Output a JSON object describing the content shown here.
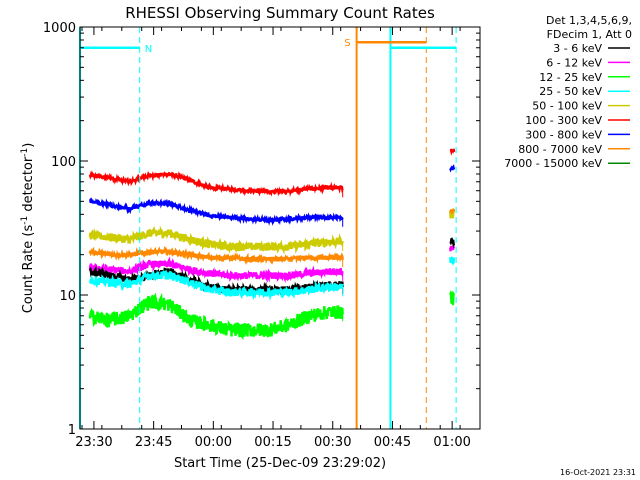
{
  "chart_data": {
    "type": "line",
    "title": "RHESSI Observing Summary Count Rates",
    "xlabel": "Start Time (25-Dec-09 23:29:02)",
    "ylabel": "Count Rate (s⁻¹ detector⁻¹)",
    "ylabel_parts": {
      "base": "Count Rate (s",
      "sup1": "-1",
      "mid": " detector",
      "sup2": "-1",
      "end": ")"
    },
    "yscale": "log",
    "ylim": [
      1,
      1000
    ],
    "xlim": [
      -2.5,
      98
    ],
    "x_units": "minutes after 23:29:02 (axis labels show HH:MM)",
    "x_ticks": [
      {
        "x": 1,
        "label": "23:30"
      },
      {
        "x": 16,
        "label": "23:45"
      },
      {
        "x": 31,
        "label": "00:00"
      },
      {
        "x": 46,
        "label": "00:15"
      },
      {
        "x": 61,
        "label": "00:30"
      },
      {
        "x": 76,
        "label": "00:45"
      },
      {
        "x": 91,
        "label": "01:00"
      }
    ],
    "y_ticks": [
      {
        "y": 1,
        "label": "1"
      },
      {
        "y": 10,
        "label": "10"
      },
      {
        "y": 100,
        "label": "100"
      },
      {
        "y": 1000,
        "label": "1000"
      }
    ],
    "legend": {
      "position": "outside-right",
      "header": [
        "Det 1,3,4,5,6,9,",
        "FDecim 1, Att 0"
      ],
      "entries": [
        {
          "label": "3 - 6 keV",
          "color": "#000000"
        },
        {
          "label": "6 - 12 keV",
          "color": "#ff00ff"
        },
        {
          "label": "12 - 25 keV",
          "color": "#00ff00"
        },
        {
          "label": "25 - 50 keV",
          "color": "#00ffff"
        },
        {
          "label": "50 - 100 keV",
          "color": "#cccc00"
        },
        {
          "label": "100 - 300 keV",
          "color": "#ff0000"
        },
        {
          "label": "300 - 800 keV",
          "color": "#0000ff"
        },
        {
          "label": "800 - 7000 keV",
          "color": "#ff8800"
        },
        {
          "label": "7000 - 15000 keV",
          "color": "#008800"
        }
      ]
    },
    "series": [
      {
        "name": "100 - 300 keV",
        "color": "#ff0000",
        "noise": 0.03,
        "segments": [
          {
            "x": [
              0,
              5,
              10,
              15,
              20,
              25,
              30,
              35,
              40,
              45,
              50,
              55,
              60,
              63.5
            ],
            "y": [
              78,
              75,
              70,
              78,
              80,
              72,
              63,
              62,
              60,
              59,
              60,
              62,
              63,
              63
            ]
          },
          {
            "x": [
              90.5,
              91.5
            ],
            "y": [
              120,
              120
            ]
          }
        ]
      },
      {
        "name": "300 - 800 keV",
        "color": "#0000ff",
        "noise": 0.03,
        "segments": [
          {
            "x": [
              0,
              5,
              10,
              15,
              20,
              25,
              30,
              35,
              40,
              45,
              50,
              55,
              60,
              63.5
            ],
            "y": [
              50,
              47,
              44,
              49,
              48,
              43,
              39,
              38,
              37,
              36,
              37,
              38,
              38,
              38
            ]
          },
          {
            "x": [
              90.5,
              91.5
            ],
            "y": [
              88,
              88
            ]
          }
        ]
      },
      {
        "name": "50 - 100 keV",
        "color": "#cccc00",
        "noise": 0.07,
        "segments": [
          {
            "x": [
              0,
              5,
              10,
              15,
              20,
              25,
              30,
              35,
              40,
              45,
              50,
              55,
              60,
              63.5
            ],
            "y": [
              28,
              27,
              26,
              29,
              29,
              26,
              24,
              23,
              23,
              23,
              23,
              24,
              25,
              25
            ]
          },
          {
            "x": [
              90.5,
              91.5
            ],
            "y": [
              40,
              40
            ]
          }
        ]
      },
      {
        "name": "800 - 7000 keV",
        "color": "#ff8800",
        "noise": 0.04,
        "segments": [
          {
            "x": [
              0,
              5,
              10,
              15,
              20,
              25,
              30,
              35,
              40,
              45,
              50,
              55,
              60,
              63.5
            ],
            "y": [
              21,
              20,
              20,
              21,
              21,
              20,
              19,
              19,
              18.5,
              18.5,
              18.5,
              19,
              19,
              19
            ]
          },
          {
            "x": [
              90.5,
              91.5
            ],
            "y": [
              42,
              42
            ]
          }
        ]
      },
      {
        "name": "6 - 12 keV",
        "color": "#ff00ff",
        "noise": 0.06,
        "segments": [
          {
            "x": [
              0,
              5,
              10,
              15,
              20,
              25,
              30,
              35,
              40,
              45,
              50,
              55,
              60,
              63.5
            ],
            "y": [
              16,
              15.5,
              15,
              17,
              17,
              15.5,
              14.5,
              14,
              14,
              14,
              14,
              14.5,
              15,
              15
            ]
          },
          {
            "x": [
              90.5,
              91.5
            ],
            "y": [
              22,
              22
            ]
          }
        ]
      },
      {
        "name": "3 - 6 keV",
        "color": "#000000",
        "noise": 0.06,
        "segments": [
          {
            "x": [
              0,
              5,
              10,
              15,
              20,
              25,
              30,
              35,
              40,
              45,
              50,
              55,
              60,
              63.5
            ],
            "y": [
              15,
              14,
              13,
              14,
              15,
              13,
              11.5,
              11,
              11,
              11,
              11,
              11.5,
              12,
              12
            ]
          },
          {
            "x": [
              90.5,
              91.5
            ],
            "y": [
              25,
              25
            ]
          }
        ]
      },
      {
        "name": "25 - 50 keV",
        "color": "#00ffff",
        "noise": 0.07,
        "segments": [
          {
            "x": [
              0,
              5,
              10,
              15,
              20,
              25,
              30,
              35,
              40,
              45,
              50,
              55,
              60,
              63.5
            ],
            "y": [
              13,
              12.5,
              12,
              14,
              14,
              12.5,
              11,
              10.5,
              10.5,
              10.5,
              10.5,
              11,
              11.5,
              11.5
            ]
          },
          {
            "x": [
              90.5,
              91.5
            ],
            "y": [
              18,
              18
            ]
          }
        ]
      },
      {
        "name": "12 - 25 keV",
        "color": "#00ff00",
        "noise": 0.12,
        "segments": [
          {
            "x": [
              0,
              5,
              10,
              15,
              20,
              25,
              30,
              35,
              40,
              45,
              50,
              55,
              60,
              63.5
            ],
            "y": [
              7,
              6.5,
              7,
              9,
              8.5,
              6.5,
              6,
              5.5,
              5.5,
              5.5,
              6,
              7,
              7.5,
              7.5
            ]
          },
          {
            "x": [
              90.5,
              91.5
            ],
            "y": [
              9.5,
              9.5
            ]
          }
        ]
      }
    ],
    "attenuator_state_lines": [
      {
        "label": "N",
        "color": "#00ffff",
        "y": 700,
        "x_from": -2.5,
        "x_to": 12.5,
        "labels_x": 12.5
      },
      {
        "label": "S",
        "color": "#ff8800",
        "y": 770,
        "x_from": 67,
        "x_to": 84.5,
        "labels_x": 67
      },
      {
        "label": "",
        "color": "#00ffff",
        "y": 700,
        "x_from": 75.5,
        "x_to": 92,
        "labels_x": 75.5
      }
    ],
    "vertical_markers": [
      {
        "x": -2.5,
        "color": "#00ffff",
        "style": "solid"
      },
      {
        "x": 12.5,
        "color": "#00ffff",
        "style": "dashed"
      },
      {
        "x": 67,
        "color": "#ff8800",
        "style": "solid"
      },
      {
        "x": 75.5,
        "color": "#00ffff",
        "style": "solid"
      },
      {
        "x": 84.5,
        "color": "#ff8800",
        "style": "dashed"
      },
      {
        "x": 92,
        "color": "#00ffff",
        "style": "dashed"
      }
    ],
    "grid": false
  },
  "footer": {
    "timestamp": "16-Oct-2021 23:31"
  }
}
